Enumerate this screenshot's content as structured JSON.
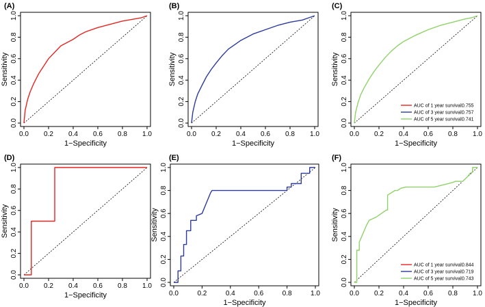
{
  "colors": {
    "red": "#e52521",
    "blue": "#2b3a9b",
    "green": "#8fd16a",
    "diag": "#000000"
  },
  "legend_labels": [
    "AUC of 1 year survival:",
    "AUC of 3 year survival:",
    "AUC of 5 year survival:"
  ],
  "chart_data": [
    {
      "panel": "(A)",
      "type": "line",
      "xlabel": "1−Specificity",
      "ylabel": "Sensitivity",
      "xlim": [
        0,
        1
      ],
      "ylim": [
        0,
        1
      ],
      "xticks": [
        "0.0",
        "0.2",
        "0.4",
        "0.6",
        "0.8",
        "1.0"
      ],
      "yticks": [
        "0.0",
        "0.2",
        "0.4",
        "0.6",
        "0.8",
        "1.0"
      ],
      "diagonal": true,
      "series": [
        {
          "name": "1 year",
          "color": "red",
          "x": [
            0,
            0.01,
            0.03,
            0.05,
            0.08,
            0.12,
            0.16,
            0.2,
            0.25,
            0.3,
            0.35,
            0.4,
            0.45,
            0.5,
            0.6,
            0.7,
            0.8,
            0.9,
            0.95,
            1.0
          ],
          "y": [
            0,
            0.12,
            0.22,
            0.29,
            0.37,
            0.46,
            0.53,
            0.6,
            0.66,
            0.72,
            0.75,
            0.78,
            0.82,
            0.85,
            0.89,
            0.92,
            0.95,
            0.97,
            0.98,
            1.0
          ]
        }
      ]
    },
    {
      "panel": "(B)",
      "type": "line",
      "xlabel": "1−Specificity",
      "ylabel": "Sensitivity",
      "xlim": [
        0,
        1
      ],
      "ylim": [
        0,
        1
      ],
      "xticks": [
        "0.0",
        "0.2",
        "0.4",
        "0.6",
        "0.8",
        "1.0"
      ],
      "yticks": [
        "0.0",
        "0.2",
        "0.4",
        "0.6",
        "0.8",
        "1.0"
      ],
      "diagonal": true,
      "series": [
        {
          "name": "3 year",
          "color": "blue",
          "x": [
            0,
            0.01,
            0.03,
            0.05,
            0.08,
            0.12,
            0.16,
            0.2,
            0.25,
            0.3,
            0.35,
            0.4,
            0.5,
            0.6,
            0.7,
            0.8,
            0.9,
            0.95,
            1.0
          ],
          "y": [
            0,
            0.1,
            0.2,
            0.27,
            0.34,
            0.43,
            0.5,
            0.56,
            0.63,
            0.69,
            0.73,
            0.77,
            0.83,
            0.87,
            0.91,
            0.94,
            0.96,
            0.98,
            1.0
          ]
        }
      ]
    },
    {
      "panel": "(C)",
      "type": "line",
      "xlabel": "1−Specificity",
      "ylabel": "Sensitivity",
      "xlim": [
        0,
        1
      ],
      "ylim": [
        0,
        1
      ],
      "xticks": [
        "0.0",
        "0.2",
        "0.4",
        "0.6",
        "0.8",
        "1.0"
      ],
      "yticks": [
        "0.0",
        "0.2",
        "0.4",
        "0.6",
        "0.8",
        "1.0"
      ],
      "diagonal": true,
      "legend": {
        "position": "bottom-right",
        "entries": [
          {
            "label_index": 0,
            "value": "0.755",
            "color": "red"
          },
          {
            "label_index": 1,
            "value": "0.757",
            "color": "blue"
          },
          {
            "label_index": 2,
            "value": "0.741",
            "color": "green"
          }
        ]
      },
      "series": [
        {
          "name": "5 year",
          "color": "green",
          "x": [
            0,
            0.01,
            0.03,
            0.05,
            0.08,
            0.12,
            0.16,
            0.2,
            0.25,
            0.3,
            0.35,
            0.4,
            0.5,
            0.6,
            0.7,
            0.8,
            0.9,
            0.95,
            1.0
          ],
          "y": [
            0,
            0.1,
            0.19,
            0.26,
            0.33,
            0.41,
            0.48,
            0.54,
            0.61,
            0.67,
            0.72,
            0.76,
            0.82,
            0.87,
            0.91,
            0.94,
            0.97,
            0.98,
            1.0
          ]
        }
      ]
    },
    {
      "panel": "(D)",
      "type": "line",
      "xlabel": "1−Specificity",
      "ylabel": "Sensitivity",
      "xlim": [
        0,
        1
      ],
      "ylim": [
        0,
        1
      ],
      "xticks": [
        "0.0",
        "0.2",
        "0.4",
        "0.6",
        "0.8",
        "1.0"
      ],
      "yticks": [
        "0.0",
        "0.2",
        "0.4",
        "0.6",
        "0.8",
        "1.0"
      ],
      "diagonal": true,
      "series": [
        {
          "name": "1 year",
          "color": "red",
          "x": [
            0,
            0.06,
            0.06,
            0.25,
            0.25,
            1.0
          ],
          "y": [
            0,
            0,
            0.5,
            0.5,
            1.0,
            1.0
          ]
        }
      ]
    },
    {
      "panel": "(E)",
      "type": "line",
      "xlabel": "1−Specificity",
      "ylabel": "Sensitivity",
      "xlim": [
        0,
        1
      ],
      "ylim": [
        0,
        1
      ],
      "xticks": [
        "0.0",
        "0.2",
        "0.4",
        "0.6",
        "0.8",
        "1.0"
      ],
      "yticks": [
        "0.0",
        "0.2",
        "0.4",
        "0.6",
        "0.8",
        "1.0"
      ],
      "diagonal": true,
      "series": [
        {
          "name": "3 year",
          "color": "blue",
          "x": [
            0,
            0.03,
            0.03,
            0.05,
            0.05,
            0.07,
            0.07,
            0.09,
            0.09,
            0.12,
            0.12,
            0.16,
            0.16,
            0.2,
            0.22,
            0.24,
            0.26,
            0.27,
            0.8,
            0.8,
            0.83,
            0.83,
            0.9,
            0.9,
            0.96,
            0.96,
            1.0,
            1.0
          ],
          "y": [
            0,
            0,
            0.1,
            0.1,
            0.23,
            0.23,
            0.33,
            0.33,
            0.45,
            0.45,
            0.54,
            0.54,
            0.58,
            0.6,
            0.66,
            0.72,
            0.78,
            0.8,
            0.8,
            0.83,
            0.83,
            0.86,
            0.86,
            0.95,
            0.95,
            1.0,
            1.0,
            1.0
          ]
        }
      ]
    },
    {
      "panel": "(F)",
      "type": "line",
      "xlabel": "1−Specificity",
      "ylabel": "Sensitivity",
      "xlim": [
        0,
        1
      ],
      "ylim": [
        0,
        1
      ],
      "xticks": [
        "0.0",
        "0.2",
        "0.4",
        "0.6",
        "0.8",
        "1.0"
      ],
      "yticks": [
        "0.0",
        "0.2",
        "0.4",
        "0.6",
        "0.8",
        "1.0"
      ],
      "diagonal": true,
      "legend": {
        "position": "bottom-right",
        "entries": [
          {
            "label_index": 0,
            "value": "0.844",
            "color": "red"
          },
          {
            "label_index": 1,
            "value": "0.719",
            "color": "blue"
          },
          {
            "label_index": 2,
            "value": "0.743",
            "color": "green"
          }
        ]
      },
      "series": [
        {
          "name": "5 year",
          "color": "green",
          "x": [
            0,
            0.02,
            0.02,
            0.04,
            0.04,
            0.06,
            0.08,
            0.1,
            0.12,
            0.18,
            0.22,
            0.26,
            0.27,
            0.27,
            0.3,
            0.33,
            0.35,
            0.38,
            0.42,
            0.65,
            0.8,
            0.82,
            0.88,
            0.9,
            0.92,
            0.94,
            0.96,
            0.96,
            1.0
          ],
          "y": [
            0,
            0,
            0.28,
            0.28,
            0.35,
            0.4,
            0.45,
            0.5,
            0.54,
            0.57,
            0.6,
            0.63,
            0.63,
            0.76,
            0.78,
            0.8,
            0.8,
            0.82,
            0.83,
            0.83,
            0.87,
            0.88,
            0.88,
            0.9,
            0.92,
            0.95,
            0.96,
            1.0,
            1.0
          ]
        }
      ]
    }
  ]
}
